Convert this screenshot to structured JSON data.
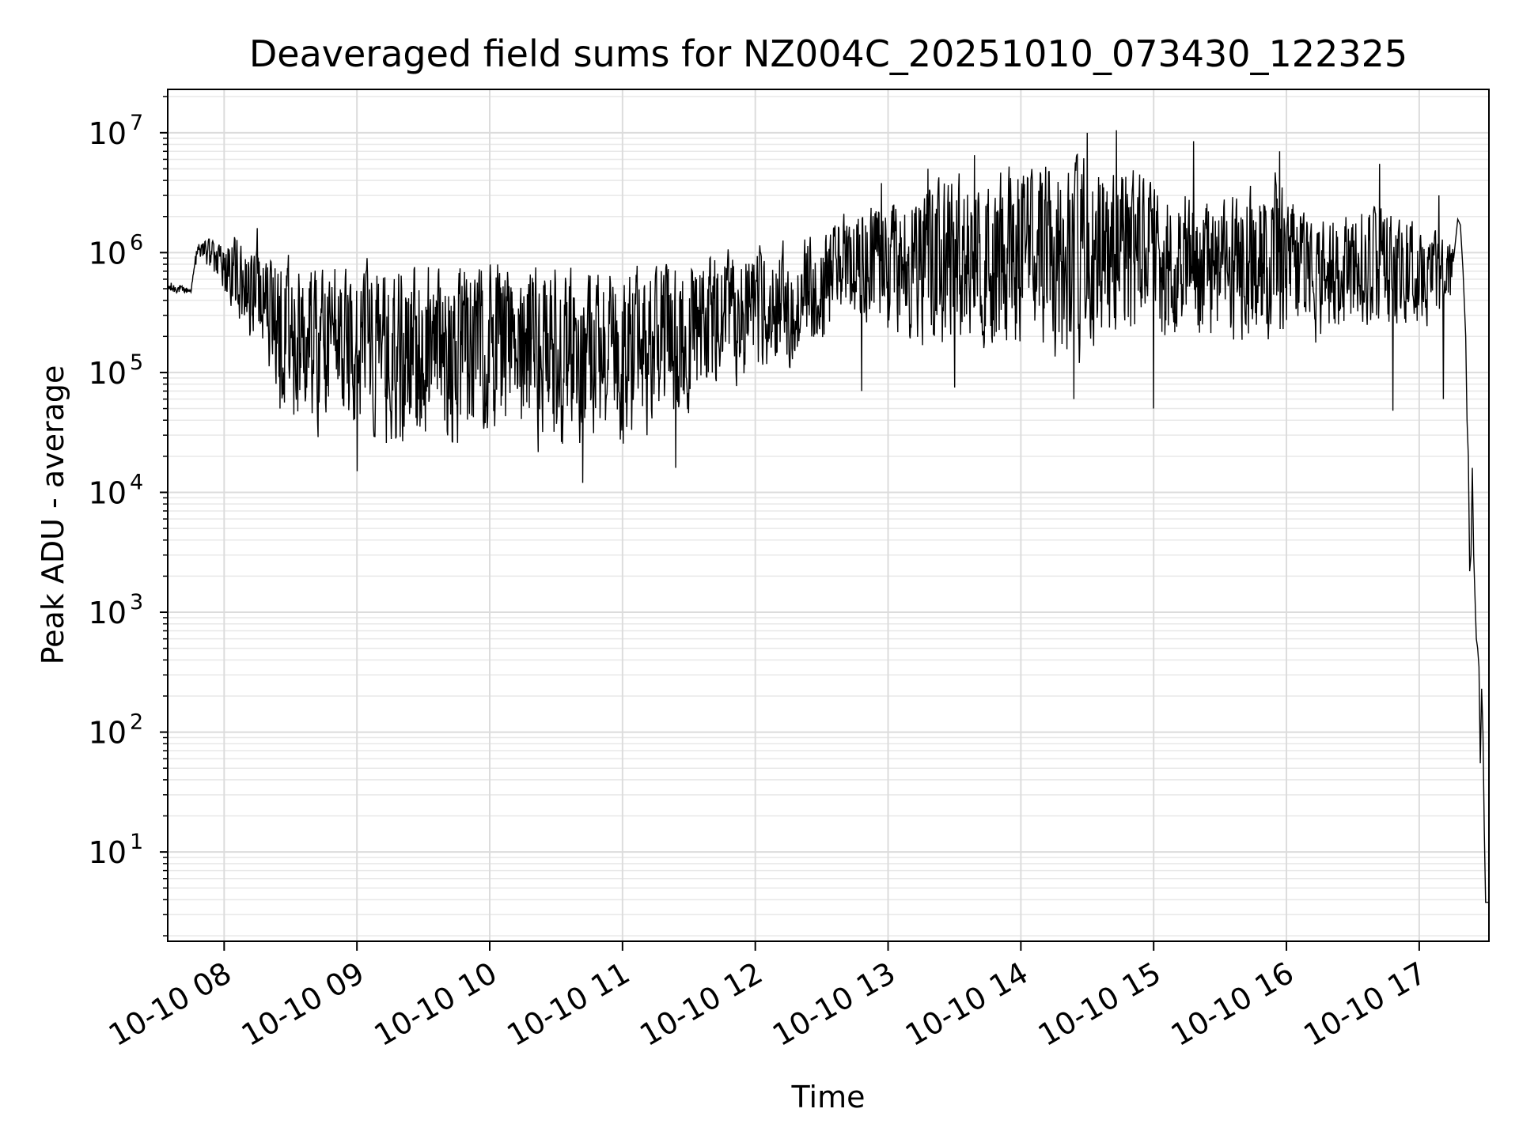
{
  "chart_data": {
    "type": "line",
    "title": "Deaveraged field sums for NZ004C_20251010_073430_122325",
    "xlabel": "Time",
    "ylabel": "Peak ADU - average",
    "yscale": "log",
    "ylim": [
      1.8,
      23000000
    ],
    "xlim_hours": [
      7.575,
      17.525
    ],
    "grid": true,
    "line_color": "#000000",
    "x_ticks": [
      {
        "value": 8,
        "label": "10-10 08"
      },
      {
        "value": 9,
        "label": "10-10 09"
      },
      {
        "value": 10,
        "label": "10-10 10"
      },
      {
        "value": 11,
        "label": "10-10 11"
      },
      {
        "value": 12,
        "label": "10-10 12"
      },
      {
        "value": 13,
        "label": "10-10 13"
      },
      {
        "value": 14,
        "label": "10-10 14"
      },
      {
        "value": 15,
        "label": "10-10 15"
      },
      {
        "value": 16,
        "label": "10-10 16"
      },
      {
        "value": 17,
        "label": "10-10 17"
      }
    ],
    "y_ticks": [
      {
        "exp": 1,
        "base": "10",
        "sup": "1"
      },
      {
        "exp": 2,
        "base": "10",
        "sup": "2"
      },
      {
        "exp": 3,
        "base": "10",
        "sup": "3"
      },
      {
        "exp": 4,
        "base": "10",
        "sup": "4"
      },
      {
        "exp": 5,
        "base": "10",
        "sup": "5"
      },
      {
        "exp": 6,
        "base": "10",
        "sup": "6"
      },
      {
        "exp": 7,
        "base": "10",
        "sup": "7"
      }
    ],
    "series": [
      {
        "name": "peak_adu_minus_average",
        "envelope": [
          {
            "t": 7.575,
            "low": 350000,
            "high": 750000
          },
          {
            "t": 7.75,
            "low": 420000,
            "high": 550000
          },
          {
            "t": 7.8,
            "low": 900000,
            "high": 1400000
          },
          {
            "t": 7.95,
            "low": 500000,
            "high": 1300000
          },
          {
            "t": 8.1,
            "low": 250000,
            "high": 1500000
          },
          {
            "t": 8.3,
            "low": 100000,
            "high": 1200000
          },
          {
            "t": 8.5,
            "low": 30000,
            "high": 1100000
          },
          {
            "t": 8.8,
            "low": 20000,
            "high": 1000000
          },
          {
            "t": 9.5,
            "low": 17000,
            "high": 1000000
          },
          {
            "t": 10.5,
            "low": 17000,
            "high": 950000
          },
          {
            "t": 11.0,
            "low": 20000,
            "high": 900000
          },
          {
            "t": 11.4,
            "low": 30000,
            "high": 1000000
          },
          {
            "t": 11.8,
            "low": 60000,
            "high": 1300000
          },
          {
            "t": 12.3,
            "low": 100000,
            "high": 1400000
          },
          {
            "t": 12.7,
            "low": 200000,
            "high": 2500000
          },
          {
            "t": 13.0,
            "low": 150000,
            "high": 3500000
          },
          {
            "t": 13.5,
            "low": 120000,
            "high": 5000000
          },
          {
            "t": 14.0,
            "low": 100000,
            "high": 6000000
          },
          {
            "t": 14.5,
            "low": 90000,
            "high": 8000000
          },
          {
            "t": 15.0,
            "low": 120000,
            "high": 5000000
          },
          {
            "t": 15.5,
            "low": 150000,
            "high": 3000000
          },
          {
            "t": 15.9,
            "low": 120000,
            "high": 6500000
          },
          {
            "t": 16.2,
            "low": 150000,
            "high": 2000000
          },
          {
            "t": 16.7,
            "low": 200000,
            "high": 3000000
          },
          {
            "t": 17.0,
            "low": 200000,
            "high": 2000000
          },
          {
            "t": 17.25,
            "low": 300000,
            "high": 1200000
          }
        ],
        "spikes": [
          {
            "t": 14.72,
            "value": 10500000
          },
          {
            "t": 14.5,
            "value": 10000000
          },
          {
            "t": 13.65,
            "value": 6500000
          },
          {
            "t": 15.95,
            "value": 7000000
          },
          {
            "t": 15.3,
            "value": 8500000
          },
          {
            "t": 16.7,
            "value": 5500000
          },
          {
            "t": 13.3,
            "value": 5000000
          },
          {
            "t": 12.95,
            "value": 3800000
          },
          {
            "t": 17.15,
            "value": 3000000
          },
          {
            "t": 8.25,
            "value": 1600000
          },
          {
            "t": 10.7,
            "value": 12000
          },
          {
            "t": 11.4,
            "value": 16000
          },
          {
            "t": 12.8,
            "value": 70000
          },
          {
            "t": 13.5,
            "value": 75000
          },
          {
            "t": 14.4,
            "value": 60000
          },
          {
            "t": 15.0,
            "value": 50000
          },
          {
            "t": 16.8,
            "value": 48000
          },
          {
            "t": 17.18,
            "value": 60000
          },
          {
            "t": 8.42,
            "value": 50000
          },
          {
            "t": 9.0,
            "value": 15000
          }
        ],
        "tail": [
          {
            "t": 17.26,
            "value": 900000
          },
          {
            "t": 17.29,
            "value": 1900000
          },
          {
            "t": 17.31,
            "value": 1700000
          },
          {
            "t": 17.33,
            "value": 700000
          },
          {
            "t": 17.35,
            "value": 200000
          },
          {
            "t": 17.36,
            "value": 40000
          },
          {
            "t": 17.37,
            "value": 20000
          },
          {
            "t": 17.38,
            "value": 2200
          },
          {
            "t": 17.39,
            "value": 3000
          },
          {
            "t": 17.4,
            "value": 16000
          },
          {
            "t": 17.41,
            "value": 3000
          },
          {
            "t": 17.43,
            "value": 600
          },
          {
            "t": 17.44,
            "value": 500
          },
          {
            "t": 17.45,
            "value": 350
          },
          {
            "t": 17.46,
            "value": 55
          },
          {
            "t": 17.47,
            "value": 230
          },
          {
            "t": 17.48,
            "value": 100
          },
          {
            "t": 17.49,
            "value": 15
          },
          {
            "t": 17.5,
            "value": 3.8
          },
          {
            "t": 17.525,
            "value": 3.8
          }
        ]
      }
    ]
  }
}
